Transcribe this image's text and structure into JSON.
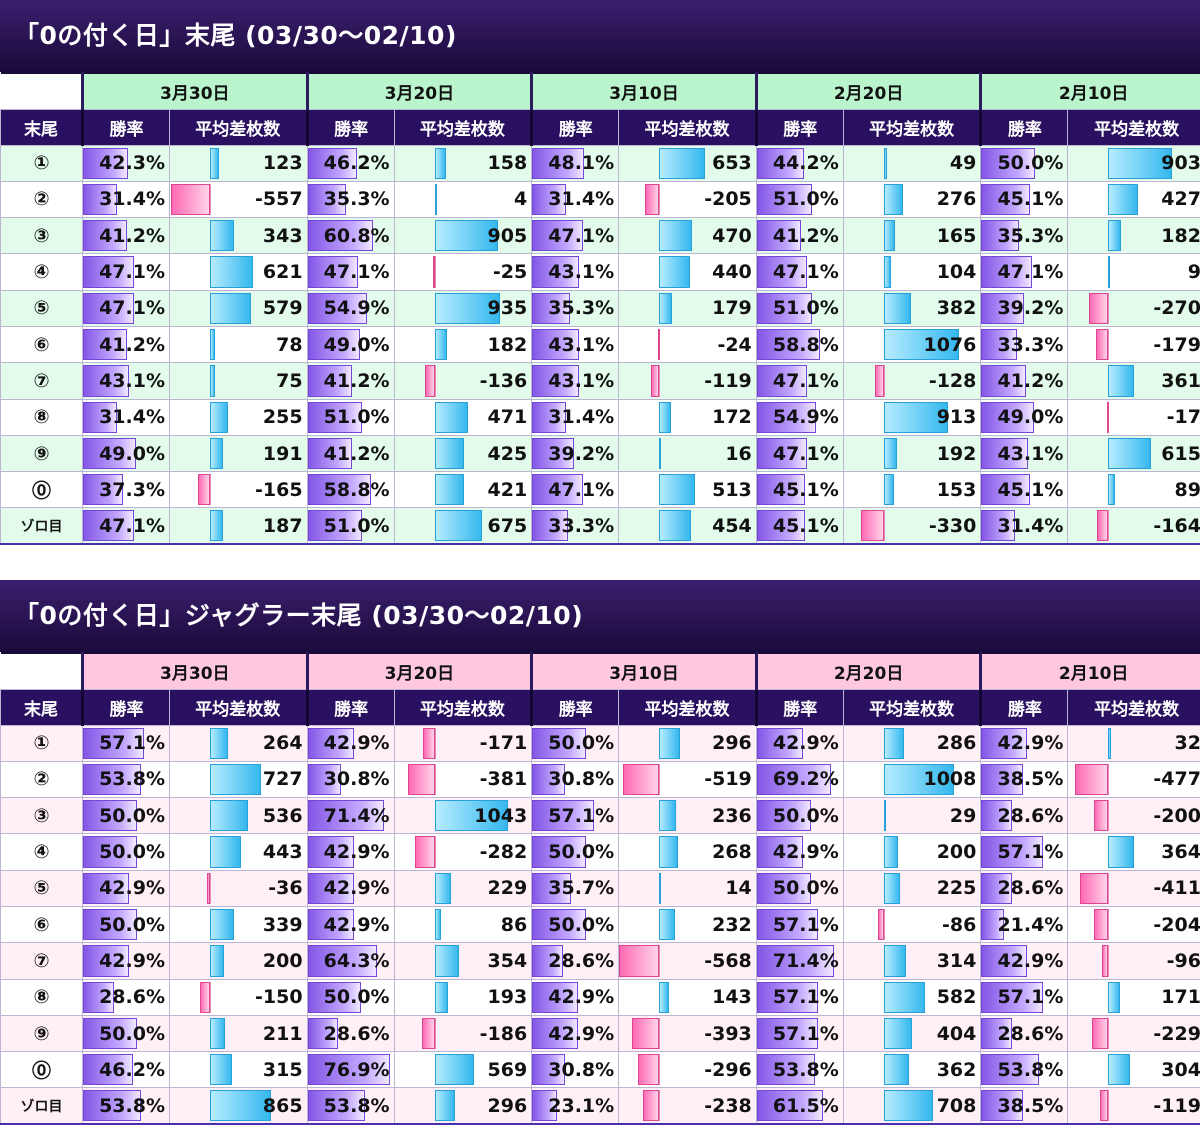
{
  "sections": [
    {
      "title": "「0の付く日」末尾 (03/30〜02/10)",
      "theme": "green",
      "header_label": "末尾",
      "rate_label": "勝率",
      "diff_label": "平均差枚数",
      "dates": [
        "3月30日",
        "3月20日",
        "3月10日",
        "2月20日",
        "2月10日"
      ],
      "rows": [
        {
          "label": "①",
          "cells": [
            {
              "rate": "42.3%",
              "diff": "123"
            },
            {
              "rate": "46.2%",
              "diff": "158"
            },
            {
              "rate": "48.1%",
              "diff": "653"
            },
            {
              "rate": "44.2%",
              "diff": "49"
            },
            {
              "rate": "50.0%",
              "diff": "903"
            }
          ]
        },
        {
          "label": "②",
          "cells": [
            {
              "rate": "31.4%",
              "diff": "-557"
            },
            {
              "rate": "35.3%",
              "diff": "4"
            },
            {
              "rate": "31.4%",
              "diff": "-205"
            },
            {
              "rate": "51.0%",
              "diff": "276"
            },
            {
              "rate": "45.1%",
              "diff": "427"
            }
          ]
        },
        {
          "label": "③",
          "cells": [
            {
              "rate": "41.2%",
              "diff": "343"
            },
            {
              "rate": "60.8%",
              "diff": "905"
            },
            {
              "rate": "47.1%",
              "diff": "470"
            },
            {
              "rate": "41.2%",
              "diff": "165"
            },
            {
              "rate": "35.3%",
              "diff": "182"
            }
          ]
        },
        {
          "label": "④",
          "cells": [
            {
              "rate": "47.1%",
              "diff": "621"
            },
            {
              "rate": "47.1%",
              "diff": "-25"
            },
            {
              "rate": "43.1%",
              "diff": "440"
            },
            {
              "rate": "47.1%",
              "diff": "104"
            },
            {
              "rate": "47.1%",
              "diff": "9"
            }
          ]
        },
        {
          "label": "⑤",
          "cells": [
            {
              "rate": "47.1%",
              "diff": "579"
            },
            {
              "rate": "54.9%",
              "diff": "935"
            },
            {
              "rate": "35.3%",
              "diff": "179"
            },
            {
              "rate": "51.0%",
              "diff": "382"
            },
            {
              "rate": "39.2%",
              "diff": "-270"
            }
          ]
        },
        {
          "label": "⑥",
          "cells": [
            {
              "rate": "41.2%",
              "diff": "78"
            },
            {
              "rate": "49.0%",
              "diff": "182"
            },
            {
              "rate": "43.1%",
              "diff": "-24"
            },
            {
              "rate": "58.8%",
              "diff": "1076"
            },
            {
              "rate": "33.3%",
              "diff": "-179"
            }
          ]
        },
        {
          "label": "⑦",
          "cells": [
            {
              "rate": "43.1%",
              "diff": "75"
            },
            {
              "rate": "41.2%",
              "diff": "-136"
            },
            {
              "rate": "43.1%",
              "diff": "-119"
            },
            {
              "rate": "47.1%",
              "diff": "-128"
            },
            {
              "rate": "41.2%",
              "diff": "361"
            }
          ]
        },
        {
          "label": "⑧",
          "cells": [
            {
              "rate": "31.4%",
              "diff": "255"
            },
            {
              "rate": "51.0%",
              "diff": "471"
            },
            {
              "rate": "31.4%",
              "diff": "172"
            },
            {
              "rate": "54.9%",
              "diff": "913"
            },
            {
              "rate": "49.0%",
              "diff": "-17"
            }
          ]
        },
        {
          "label": "⑨",
          "cells": [
            {
              "rate": "49.0%",
              "diff": "191"
            },
            {
              "rate": "41.2%",
              "diff": "425"
            },
            {
              "rate": "39.2%",
              "diff": "16"
            },
            {
              "rate": "47.1%",
              "diff": "192"
            },
            {
              "rate": "43.1%",
              "diff": "615"
            }
          ]
        },
        {
          "label": "⓪",
          "cells": [
            {
              "rate": "37.3%",
              "diff": "-165"
            },
            {
              "rate": "58.8%",
              "diff": "421"
            },
            {
              "rate": "47.1%",
              "diff": "513"
            },
            {
              "rate": "45.1%",
              "diff": "153"
            },
            {
              "rate": "45.1%",
              "diff": "89"
            }
          ]
        },
        {
          "label": "ゾロ目",
          "cells": [
            {
              "rate": "47.1%",
              "diff": "187"
            },
            {
              "rate": "51.0%",
              "diff": "675"
            },
            {
              "rate": "33.3%",
              "diff": "454"
            },
            {
              "rate": "45.1%",
              "diff": "-330"
            },
            {
              "rate": "31.4%",
              "diff": "-164"
            }
          ]
        }
      ]
    },
    {
      "title": "「0の付く日」ジャグラー末尾 (03/30〜02/10)",
      "theme": "pink",
      "header_label": "末尾",
      "rate_label": "勝率",
      "diff_label": "平均差枚数",
      "dates": [
        "3月30日",
        "3月20日",
        "3月10日",
        "2月20日",
        "2月10日"
      ],
      "rows": [
        {
          "label": "①",
          "cells": [
            {
              "rate": "57.1%",
              "diff": "264"
            },
            {
              "rate": "42.9%",
              "diff": "-171"
            },
            {
              "rate": "50.0%",
              "diff": "296"
            },
            {
              "rate": "42.9%",
              "diff": "286"
            },
            {
              "rate": "42.9%",
              "diff": "32"
            }
          ]
        },
        {
          "label": "②",
          "cells": [
            {
              "rate": "53.8%",
              "diff": "727"
            },
            {
              "rate": "30.8%",
              "diff": "-381"
            },
            {
              "rate": "30.8%",
              "diff": "-519"
            },
            {
              "rate": "69.2%",
              "diff": "1008"
            },
            {
              "rate": "38.5%",
              "diff": "-477"
            }
          ]
        },
        {
          "label": "③",
          "cells": [
            {
              "rate": "50.0%",
              "diff": "536"
            },
            {
              "rate": "71.4%",
              "diff": "1043"
            },
            {
              "rate": "57.1%",
              "diff": "236"
            },
            {
              "rate": "50.0%",
              "diff": "29"
            },
            {
              "rate": "28.6%",
              "diff": "-200"
            }
          ]
        },
        {
          "label": "④",
          "cells": [
            {
              "rate": "50.0%",
              "diff": "443"
            },
            {
              "rate": "42.9%",
              "diff": "-282"
            },
            {
              "rate": "50.0%",
              "diff": "268"
            },
            {
              "rate": "42.9%",
              "diff": "200"
            },
            {
              "rate": "57.1%",
              "diff": "364"
            }
          ]
        },
        {
          "label": "⑤",
          "cells": [
            {
              "rate": "42.9%",
              "diff": "-36"
            },
            {
              "rate": "42.9%",
              "diff": "229"
            },
            {
              "rate": "35.7%",
              "diff": "14"
            },
            {
              "rate": "50.0%",
              "diff": "225"
            },
            {
              "rate": "28.6%",
              "diff": "-411"
            }
          ]
        },
        {
          "label": "⑥",
          "cells": [
            {
              "rate": "50.0%",
              "diff": "339"
            },
            {
              "rate": "42.9%",
              "diff": "86"
            },
            {
              "rate": "50.0%",
              "diff": "232"
            },
            {
              "rate": "57.1%",
              "diff": "-86"
            },
            {
              "rate": "21.4%",
              "diff": "-204"
            }
          ]
        },
        {
          "label": "⑦",
          "cells": [
            {
              "rate": "42.9%",
              "diff": "200"
            },
            {
              "rate": "64.3%",
              "diff": "354"
            },
            {
              "rate": "28.6%",
              "diff": "-568"
            },
            {
              "rate": "71.4%",
              "diff": "314"
            },
            {
              "rate": "42.9%",
              "diff": "-96"
            }
          ]
        },
        {
          "label": "⑧",
          "cells": [
            {
              "rate": "28.6%",
              "diff": "-150"
            },
            {
              "rate": "50.0%",
              "diff": "193"
            },
            {
              "rate": "42.9%",
              "diff": "143"
            },
            {
              "rate": "57.1%",
              "diff": "582"
            },
            {
              "rate": "57.1%",
              "diff": "171"
            }
          ]
        },
        {
          "label": "⑨",
          "cells": [
            {
              "rate": "50.0%",
              "diff": "211"
            },
            {
              "rate": "28.6%",
              "diff": "-186"
            },
            {
              "rate": "42.9%",
              "diff": "-393"
            },
            {
              "rate": "57.1%",
              "diff": "404"
            },
            {
              "rate": "28.6%",
              "diff": "-229"
            }
          ]
        },
        {
          "label": "⓪",
          "cells": [
            {
              "rate": "46.2%",
              "diff": "315"
            },
            {
              "rate": "76.9%",
              "diff": "569"
            },
            {
              "rate": "30.8%",
              "diff": "-296"
            },
            {
              "rate": "53.8%",
              "diff": "362"
            },
            {
              "rate": "53.8%",
              "diff": "304"
            }
          ]
        },
        {
          "label": "ゾロ目",
          "cells": [
            {
              "rate": "53.8%",
              "diff": "865"
            },
            {
              "rate": "53.8%",
              "diff": "296"
            },
            {
              "rate": "23.1%",
              "diff": "-238"
            },
            {
              "rate": "61.5%",
              "diff": "708"
            },
            {
              "rate": "38.5%",
              "diff": "-119"
            }
          ]
        }
      ]
    }
  ]
}
